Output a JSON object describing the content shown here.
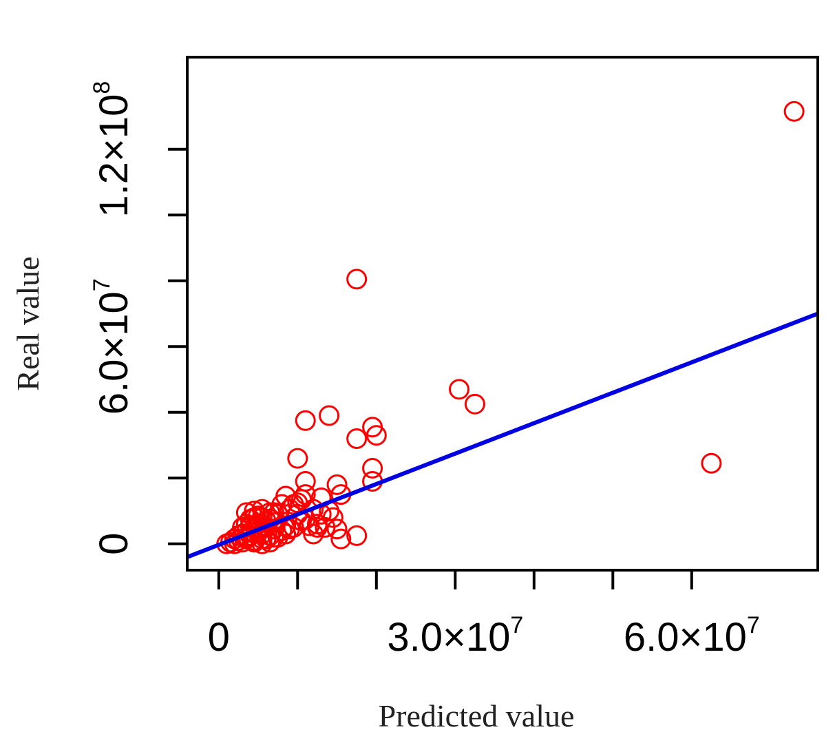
{
  "chart_data": {
    "type": "scatter",
    "xlabel": "Predicted value",
    "ylabel": "Real value",
    "xlim": [
      -4000000,
      76000000
    ],
    "ylim": [
      -8000000,
      148000000
    ],
    "grid": false,
    "x_ticks": [
      0,
      10000000,
      20000000,
      30000000,
      40000000,
      50000000,
      60000000
    ],
    "y_ticks": [
      0,
      20000000,
      40000000,
      60000000,
      80000000,
      100000000,
      120000000
    ],
    "x_tick_labels": [
      {
        "value": 0,
        "base": "0",
        "exp": ""
      },
      {
        "value": 30000000,
        "base": "3.0×10",
        "exp": "7"
      },
      {
        "value": 60000000,
        "base": "6.0×10",
        "exp": "7"
      }
    ],
    "y_tick_labels": [
      {
        "value": 0,
        "base": "0",
        "exp": ""
      },
      {
        "value": 60000000,
        "base": "6.0×10",
        "exp": "7"
      },
      {
        "value": 120000000,
        "base": "1.2×10",
        "exp": "8"
      }
    ],
    "point_color": "#ff0000",
    "line_color": "#0000e0",
    "series": [
      {
        "type": "scatter",
        "x": [
          73000000,
          17500000,
          30500000,
          32500000,
          11000000,
          14000000,
          19500000,
          17500000,
          20000000,
          62500000,
          10000000,
          15500000,
          19500000,
          11000000,
          15000000,
          11000000,
          10000000,
          19500000,
          13000000,
          14000000,
          15000000,
          14500000,
          17500000,
          15500000,
          13000000,
          12000000,
          12500000,
          10500000,
          9500000,
          12500000,
          11000000,
          13500000,
          12000000,
          8500000,
          9000000,
          7000000,
          8000000,
          10000000,
          10500000,
          11500000,
          3500000,
          4500000,
          5500000,
          6500000,
          7500000,
          4000000,
          4500000,
          5000000,
          5500000,
          6000000,
          6500000,
          7000000,
          8500000,
          9500000,
          3000000,
          3500000,
          4000000,
          5000000,
          6000000,
          7000000,
          8000000,
          9000000,
          2000000,
          2500000,
          3000000,
          4000000,
          5500000,
          6500000,
          7500000,
          8500000,
          1500000,
          2500000,
          3500000,
          4500000,
          6000000,
          7000000,
          1000000,
          2000000,
          3000000,
          4500000,
          5500000,
          4000000,
          5500000,
          5000000,
          3500000,
          6500000
        ],
        "y": [
          131500000,
          80500000,
          47000000,
          42500000,
          37500000,
          39000000,
          35500000,
          32000000,
          33000000,
          24500000,
          26000000,
          15000000,
          23000000,
          19000000,
          18000000,
          15000000,
          12500000,
          19000000,
          14000000,
          10000000,
          4500000,
          8000000,
          2500000,
          1500000,
          9000000,
          10500000,
          6000000,
          13500000,
          12000000,
          5000000,
          7500000,
          5000000,
          3000000,
          14500000,
          10500000,
          9500000,
          12000000,
          9000000,
          7000000,
          5500000,
          9500000,
          10000000,
          10500000,
          9500000,
          9000000,
          7500000,
          8000000,
          8500000,
          8000000,
          7000000,
          7500000,
          6500000,
          5500000,
          5000000,
          5000000,
          6000000,
          5500000,
          6000000,
          5000000,
          4500000,
          4000000,
          4500000,
          1500000,
          2500000,
          3000000,
          3500000,
          3000000,
          2500000,
          2000000,
          3000000,
          500000,
          1000000,
          1500000,
          1000000,
          1500000,
          2000000,
          0,
          0,
          500000,
          500000,
          0,
          2500000,
          1500000,
          3500000,
          2000000,
          500000
        ]
      },
      {
        "type": "line",
        "x": [
          -4000000,
          76000000
        ],
        "y": [
          -4000000,
          70000000
        ]
      }
    ]
  }
}
